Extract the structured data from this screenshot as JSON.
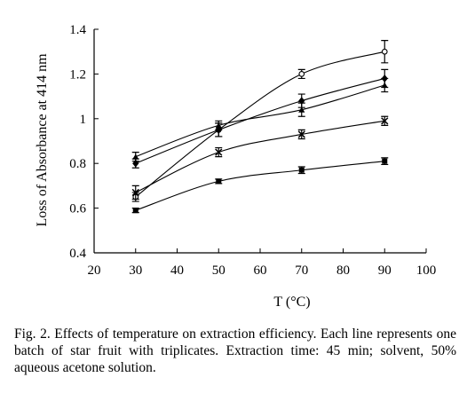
{
  "chart_data": {
    "type": "line",
    "xlabel": "T (°C)",
    "ylabel": "Loss of Absorbance at 414 nm",
    "xlim": [
      20,
      100
    ],
    "ylim": [
      0.4,
      1.4
    ],
    "xticks": [
      "20",
      "30",
      "40",
      "50",
      "60",
      "70",
      "80",
      "90",
      "100"
    ],
    "yticks": [
      "0.4",
      "0.6",
      "0.8",
      "1",
      "1.2",
      "1.4"
    ],
    "x": [
      30,
      50,
      70,
      90
    ],
    "grid": false,
    "legend": "none",
    "series": [
      {
        "values": [
          0.65,
          0.95,
          1.2,
          1.3
        ],
        "errors": [
          0.02,
          0.03,
          0.02,
          0.05
        ],
        "marker": "open-circle"
      },
      {
        "values": [
          0.8,
          0.95,
          1.08,
          1.18
        ],
        "errors": [
          0.02,
          0.03,
          0.03,
          0.04
        ],
        "marker": "diamond"
      },
      {
        "values": [
          0.83,
          0.97,
          1.04,
          1.15
        ],
        "errors": [
          0.02,
          0.02,
          0.03,
          0.03
        ],
        "marker": "triangle"
      },
      {
        "values": [
          0.67,
          0.85,
          0.93,
          0.99
        ],
        "errors": [
          0.03,
          0.02,
          0.02,
          0.02
        ],
        "marker": "cross"
      },
      {
        "values": [
          0.59,
          0.72,
          0.77,
          0.81
        ],
        "errors": [
          0.01,
          0.01,
          0.015,
          0.015
        ],
        "marker": "square"
      }
    ]
  },
  "caption": "Fig. 2. Effects of temperature on extraction efficiency. Each line represents one batch of star fruit with triplicates. Extraction time: 45 min; solvent, 50% aqueous acetone solution."
}
